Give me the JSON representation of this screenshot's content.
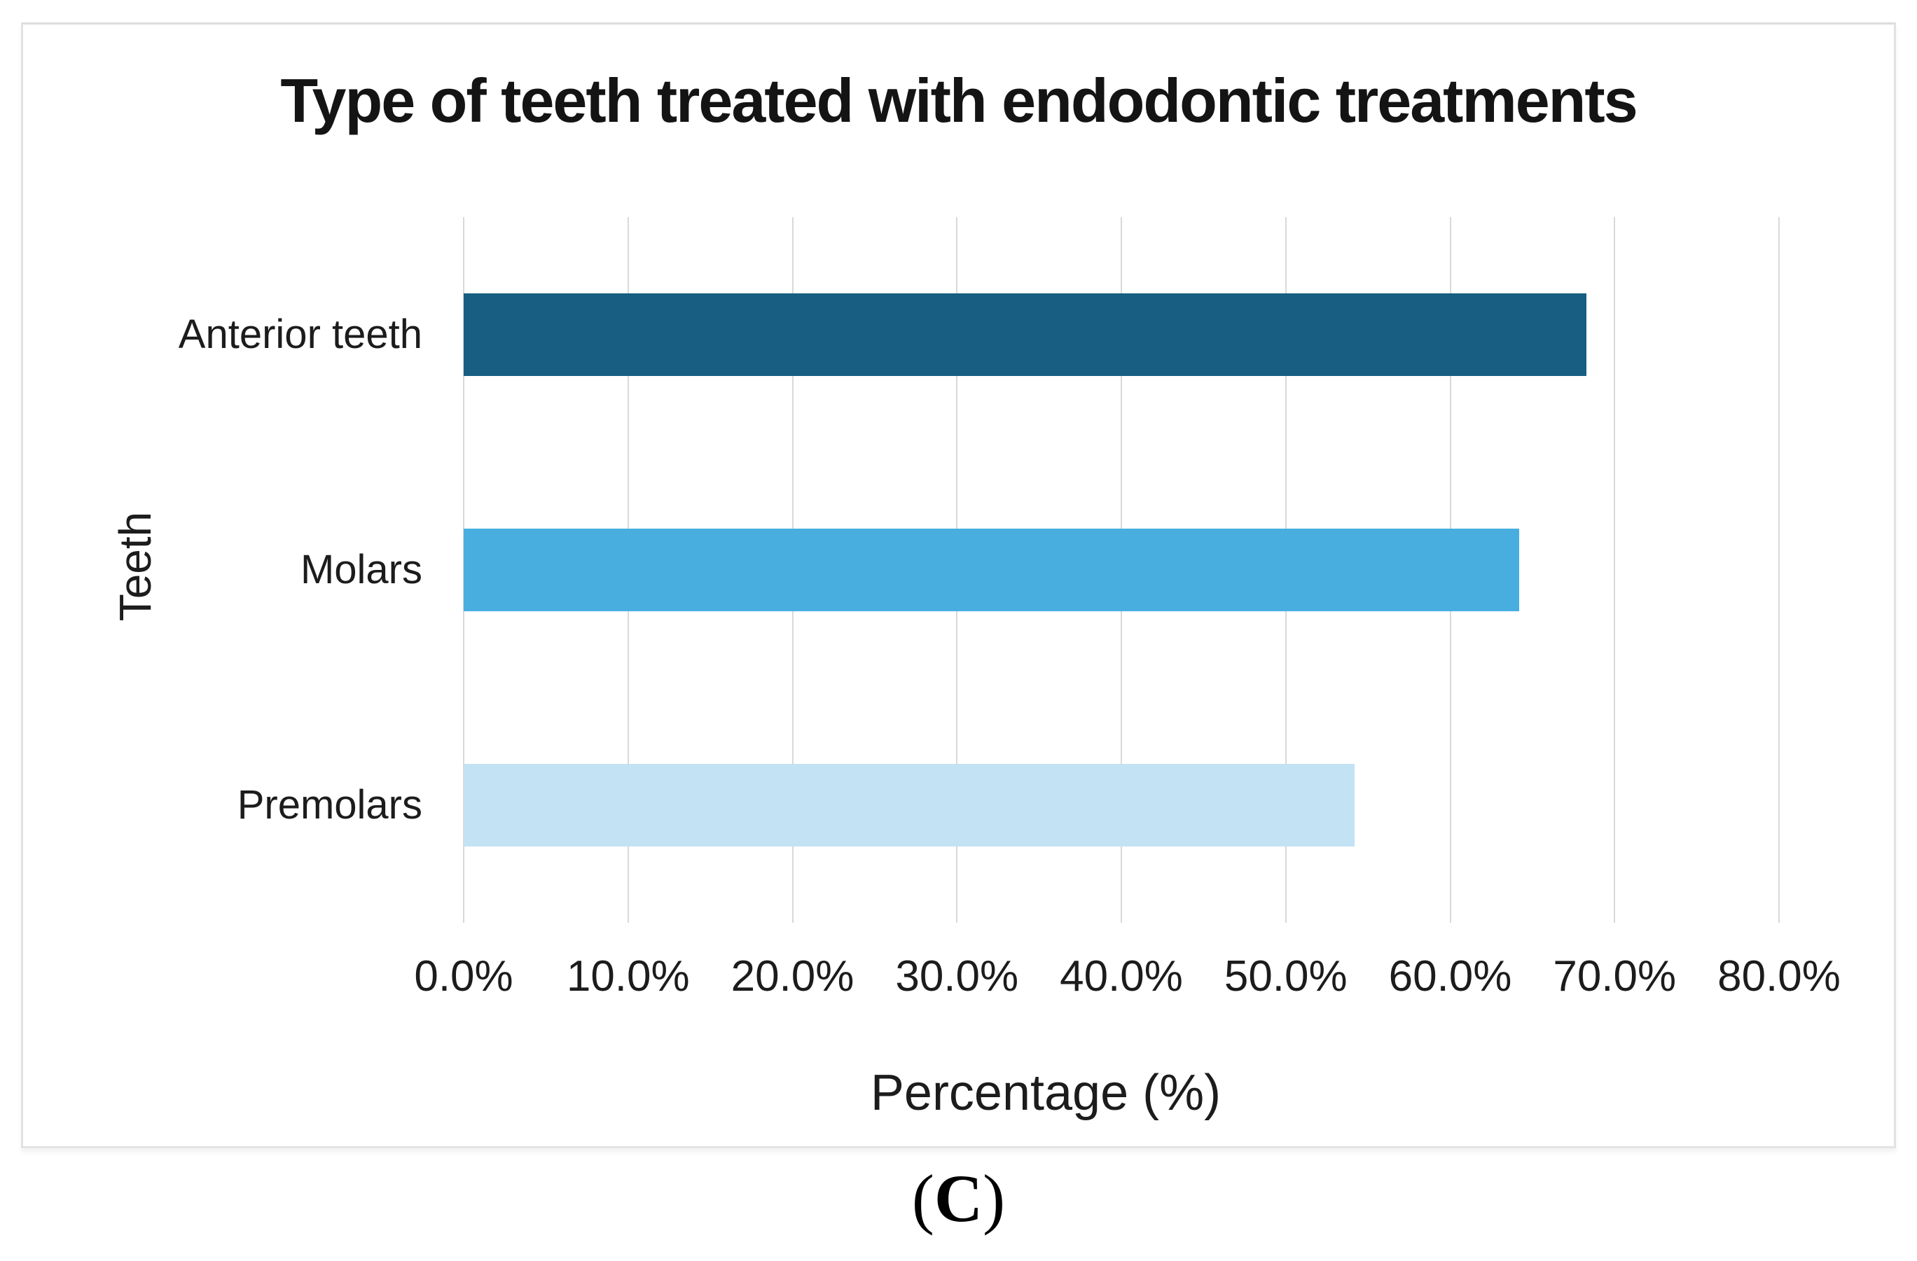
{
  "figure": {
    "caption": {
      "open": "(",
      "letter": "C",
      "close": ")"
    }
  },
  "chart_data": {
    "type": "bar",
    "orientation": "horizontal",
    "title": "Type of teeth treated with endodontic treatments",
    "xlabel": "Percentage (%)",
    "ylabel": "Teeth",
    "categories": [
      "Anterior teeth",
      "Molars",
      "Premolars"
    ],
    "values": [
      68.3,
      64.2,
      54.2
    ],
    "unit": "%",
    "xlim": [
      0,
      80
    ],
    "tick_step": 10,
    "x_tick_labels": [
      "0.0%",
      "10.0%",
      "20.0%",
      "30.0%",
      "40.0%",
      "50.0%",
      "60.0%",
      "70.0%",
      "80.0%"
    ],
    "bar_colors": [
      "#175E82",
      "#47AEDF",
      "#C3E2F4"
    ],
    "gridline_color": "#D9D9D9",
    "grid": true,
    "legend": false
  }
}
